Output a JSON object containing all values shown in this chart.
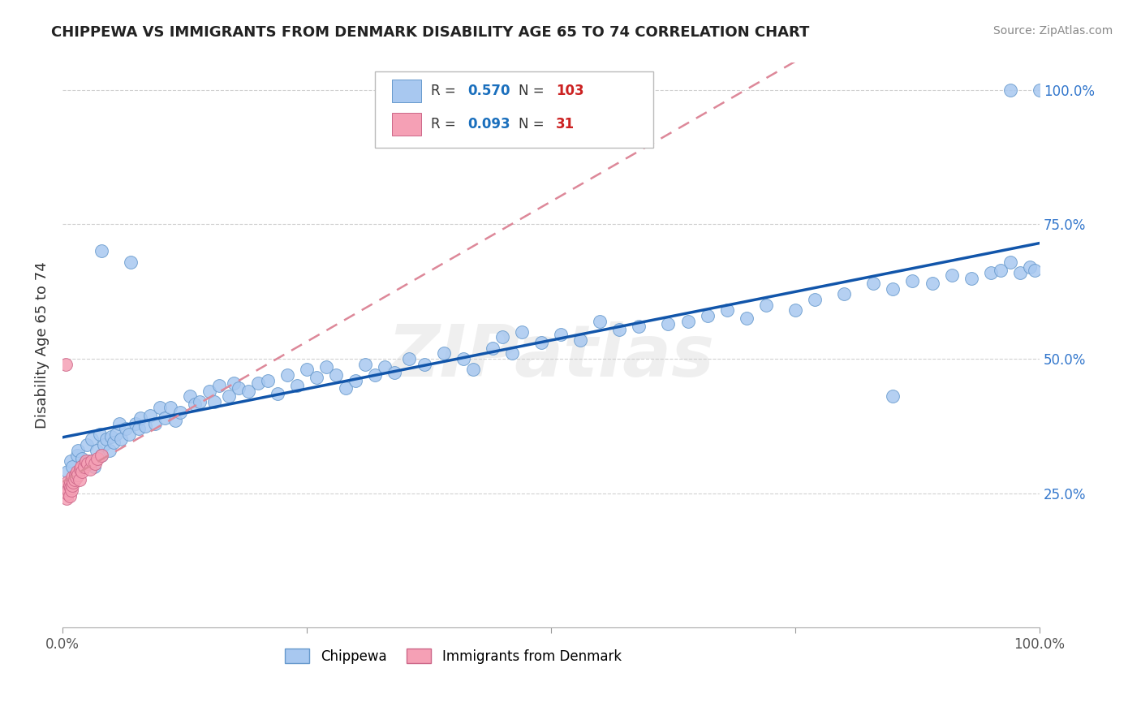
{
  "title": "CHIPPEWA VS IMMIGRANTS FROM DENMARK DISABILITY AGE 65 TO 74 CORRELATION CHART",
  "source": "Source: ZipAtlas.com",
  "ylabel": "Disability Age 65 to 74",
  "chippewa_color": "#a8c8f0",
  "chippewa_edge": "#6699cc",
  "denmark_color": "#f5a0b5",
  "denmark_edge": "#cc6688",
  "trendline_chippewa": "#1155aa",
  "trendline_denmark": "#dd8899",
  "xmin": 0.0,
  "xmax": 1.0,
  "ymin": 0.0,
  "ymax": 1.05,
  "ytick_labels": [
    "25.0%",
    "50.0%",
    "75.0%",
    "100.0%"
  ],
  "ytick_values": [
    0.25,
    0.5,
    0.75,
    1.0
  ],
  "chippewa_x": [
    0.005,
    0.008,
    0.01,
    0.012,
    0.015,
    0.016,
    0.018,
    0.02,
    0.022,
    0.025,
    0.027,
    0.03,
    0.032,
    0.035,
    0.038,
    0.04,
    0.042,
    0.045,
    0.048,
    0.05,
    0.052,
    0.055,
    0.058,
    0.06,
    0.065,
    0.068,
    0.07,
    0.075,
    0.078,
    0.08,
    0.085,
    0.09,
    0.095,
    0.1,
    0.105,
    0.11,
    0.115,
    0.12,
    0.13,
    0.135,
    0.14,
    0.15,
    0.155,
    0.16,
    0.17,
    0.175,
    0.18,
    0.19,
    0.2,
    0.21,
    0.22,
    0.23,
    0.24,
    0.25,
    0.26,
    0.27,
    0.28,
    0.29,
    0.3,
    0.31,
    0.32,
    0.33,
    0.34,
    0.355,
    0.37,
    0.39,
    0.41,
    0.42,
    0.44,
    0.45,
    0.46,
    0.47,
    0.49,
    0.51,
    0.53,
    0.55,
    0.57,
    0.59,
    0.62,
    0.64,
    0.66,
    0.68,
    0.7,
    0.72,
    0.75,
    0.77,
    0.8,
    0.83,
    0.85,
    0.87,
    0.89,
    0.91,
    0.93,
    0.95,
    0.96,
    0.97,
    0.98,
    0.99,
    0.995,
    1.0,
    0.85,
    0.97,
    0.04
  ],
  "chippewa_y": [
    0.29,
    0.31,
    0.3,
    0.28,
    0.32,
    0.33,
    0.295,
    0.315,
    0.305,
    0.34,
    0.31,
    0.35,
    0.3,
    0.33,
    0.36,
    0.32,
    0.34,
    0.35,
    0.33,
    0.355,
    0.345,
    0.36,
    0.38,
    0.35,
    0.37,
    0.36,
    0.68,
    0.38,
    0.37,
    0.39,
    0.375,
    0.395,
    0.38,
    0.41,
    0.39,
    0.41,
    0.385,
    0.4,
    0.43,
    0.415,
    0.42,
    0.44,
    0.42,
    0.45,
    0.43,
    0.455,
    0.445,
    0.44,
    0.455,
    0.46,
    0.435,
    0.47,
    0.45,
    0.48,
    0.465,
    0.485,
    0.47,
    0.445,
    0.46,
    0.49,
    0.47,
    0.485,
    0.475,
    0.5,
    0.49,
    0.51,
    0.5,
    0.48,
    0.52,
    0.54,
    0.51,
    0.55,
    0.53,
    0.545,
    0.535,
    0.57,
    0.555,
    0.56,
    0.565,
    0.57,
    0.58,
    0.59,
    0.575,
    0.6,
    0.59,
    0.61,
    0.62,
    0.64,
    0.63,
    0.645,
    0.64,
    0.655,
    0.65,
    0.66,
    0.665,
    0.68,
    0.66,
    0.67,
    0.665,
    1.0,
    0.43,
    1.0,
    0.7
  ],
  "denmark_x": [
    0.003,
    0.004,
    0.005,
    0.005,
    0.006,
    0.007,
    0.007,
    0.008,
    0.008,
    0.009,
    0.01,
    0.01,
    0.011,
    0.012,
    0.013,
    0.014,
    0.015,
    0.016,
    0.017,
    0.018,
    0.019,
    0.02,
    0.022,
    0.024,
    0.026,
    0.028,
    0.03,
    0.033,
    0.036,
    0.04,
    0.003
  ],
  "denmark_y": [
    0.26,
    0.24,
    0.27,
    0.25,
    0.255,
    0.265,
    0.245,
    0.27,
    0.26,
    0.255,
    0.28,
    0.265,
    0.27,
    0.275,
    0.285,
    0.28,
    0.29,
    0.285,
    0.275,
    0.295,
    0.3,
    0.29,
    0.3,
    0.31,
    0.305,
    0.295,
    0.31,
    0.305,
    0.315,
    0.32,
    0.49
  ],
  "watermark_text": "ZIPatlas",
  "background_color": "#ffffff",
  "grid_color": "#cccccc",
  "legend_R1": "0.570",
  "legend_N1": "103",
  "legend_R2": "0.093",
  "legend_N2": "31",
  "legend_color_R": "#1a6fbd",
  "legend_color_N": "#cc2222",
  "legend_color_text": "#333333"
}
